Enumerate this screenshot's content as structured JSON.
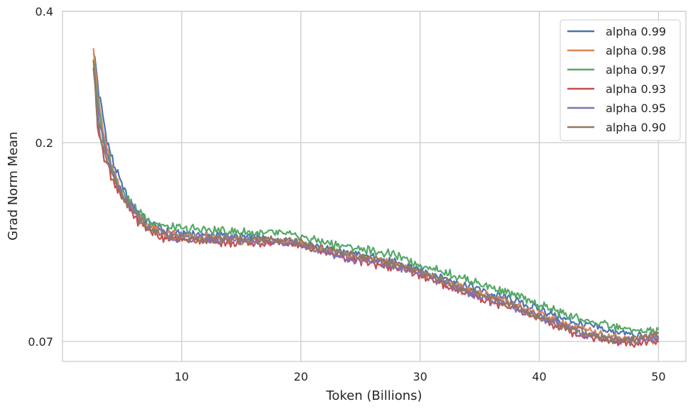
{
  "chart_data": {
    "type": "line",
    "title": "",
    "xlabel": "Token (Billions)",
    "ylabel": "Grad Norm Mean",
    "x_ticks": [
      10,
      20,
      30,
      40,
      50
    ],
    "y_ticks": [
      0.07,
      0.2,
      0.4
    ],
    "y_tick_labels": [
      "0.07",
      "0.2",
      "0.4"
    ],
    "xlim": [
      0.0,
      52.3
    ],
    "ylim": [
      0.063,
      0.4
    ],
    "y_scale": "log",
    "grid": true,
    "legend_position": "top-right",
    "x": [
      2.6,
      3.0,
      3.5,
      4.0,
      4.5,
      5.0,
      6.0,
      7.0,
      8.0,
      9.0,
      10.0,
      12.0,
      14.0,
      16.0,
      18.0,
      20.0,
      22.0,
      24.0,
      26.0,
      28.0,
      30.0,
      32.0,
      34.0,
      36.0,
      38.0,
      40.0,
      42.0,
      44.0,
      46.0,
      48.0,
      50.0
    ],
    "series": [
      {
        "name": "alpha 0.99",
        "color": "#4c72b0",
        "values": [
          0.33,
          0.265,
          0.22,
          0.19,
          0.172,
          0.158,
          0.142,
          0.132,
          0.127,
          0.125,
          0.124,
          0.123,
          0.122,
          0.121,
          0.12,
          0.118,
          0.114,
          0.111,
          0.109,
          0.106,
          0.102,
          0.098,
          0.094,
          0.09,
          0.087,
          0.083,
          0.079,
          0.076,
          0.074,
          0.072,
          0.072
        ]
      },
      {
        "name": "alpha 0.98",
        "color": "#dd8452",
        "values": [
          0.34,
          0.25,
          0.205,
          0.182,
          0.165,
          0.152,
          0.14,
          0.13,
          0.126,
          0.123,
          0.122,
          0.121,
          0.12,
          0.119,
          0.119,
          0.117,
          0.113,
          0.11,
          0.108,
          0.105,
          0.101,
          0.096,
          0.092,
          0.088,
          0.085,
          0.081,
          0.077,
          0.074,
          0.072,
          0.071,
          0.071
        ]
      },
      {
        "name": "alpha 0.97",
        "color": "#55a868",
        "values": [
          0.31,
          0.24,
          0.2,
          0.18,
          0.166,
          0.155,
          0.143,
          0.134,
          0.13,
          0.128,
          0.127,
          0.126,
          0.125,
          0.124,
          0.124,
          0.122,
          0.118,
          0.115,
          0.113,
          0.11,
          0.105,
          0.101,
          0.097,
          0.093,
          0.089,
          0.085,
          0.081,
          0.078,
          0.076,
          0.074,
          0.074
        ]
      },
      {
        "name": "alpha 0.93",
        "color": "#c44e52",
        "values": [
          0.3,
          0.215,
          0.185,
          0.17,
          0.158,
          0.148,
          0.136,
          0.127,
          0.123,
          0.12,
          0.12,
          0.119,
          0.118,
          0.118,
          0.118,
          0.116,
          0.112,
          0.108,
          0.106,
          0.103,
          0.099,
          0.094,
          0.09,
          0.086,
          0.083,
          0.079,
          0.075,
          0.072,
          0.07,
          0.069,
          0.07
        ]
      },
      {
        "name": "alpha 0.95",
        "color": "#8172b3",
        "values": [
          0.3,
          0.23,
          0.195,
          0.176,
          0.162,
          0.151,
          0.139,
          0.129,
          0.125,
          0.122,
          0.121,
          0.12,
          0.12,
          0.119,
          0.119,
          0.117,
          0.112,
          0.109,
          0.107,
          0.104,
          0.1,
          0.095,
          0.091,
          0.087,
          0.084,
          0.08,
          0.076,
          0.073,
          0.071,
          0.07,
          0.071
        ]
      },
      {
        "name": "alpha 0.90",
        "color": "#937860",
        "values": [
          0.3,
          0.22,
          0.19,
          0.172,
          0.16,
          0.15,
          0.138,
          0.128,
          0.124,
          0.122,
          0.121,
          0.12,
          0.12,
          0.12,
          0.12,
          0.118,
          0.114,
          0.111,
          0.109,
          0.105,
          0.101,
          0.096,
          0.092,
          0.088,
          0.084,
          0.08,
          0.076,
          0.073,
          0.071,
          0.07,
          0.073
        ]
      }
    ]
  }
}
